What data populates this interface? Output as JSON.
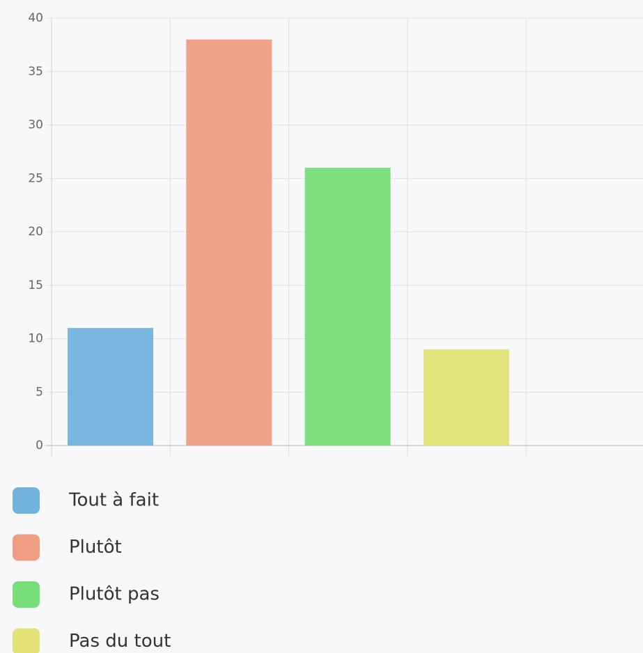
{
  "chart_data": {
    "type": "bar",
    "series": [
      {
        "name": "Tout à fait",
        "color": "#72b3de",
        "values": [
          11
        ]
      },
      {
        "name": "Plutôt",
        "color": "#f09e83",
        "values": [
          38
        ]
      },
      {
        "name": "Plutôt pas",
        "color": "#78de78",
        "values": [
          26
        ]
      },
      {
        "name": "Pas du tout",
        "color": "#e2e276",
        "values": [
          9
        ]
      }
    ],
    "ylim": [
      0,
      40
    ],
    "yticks": [
      0,
      5,
      10,
      15,
      20,
      25,
      30,
      35,
      40
    ],
    "grid": true
  }
}
